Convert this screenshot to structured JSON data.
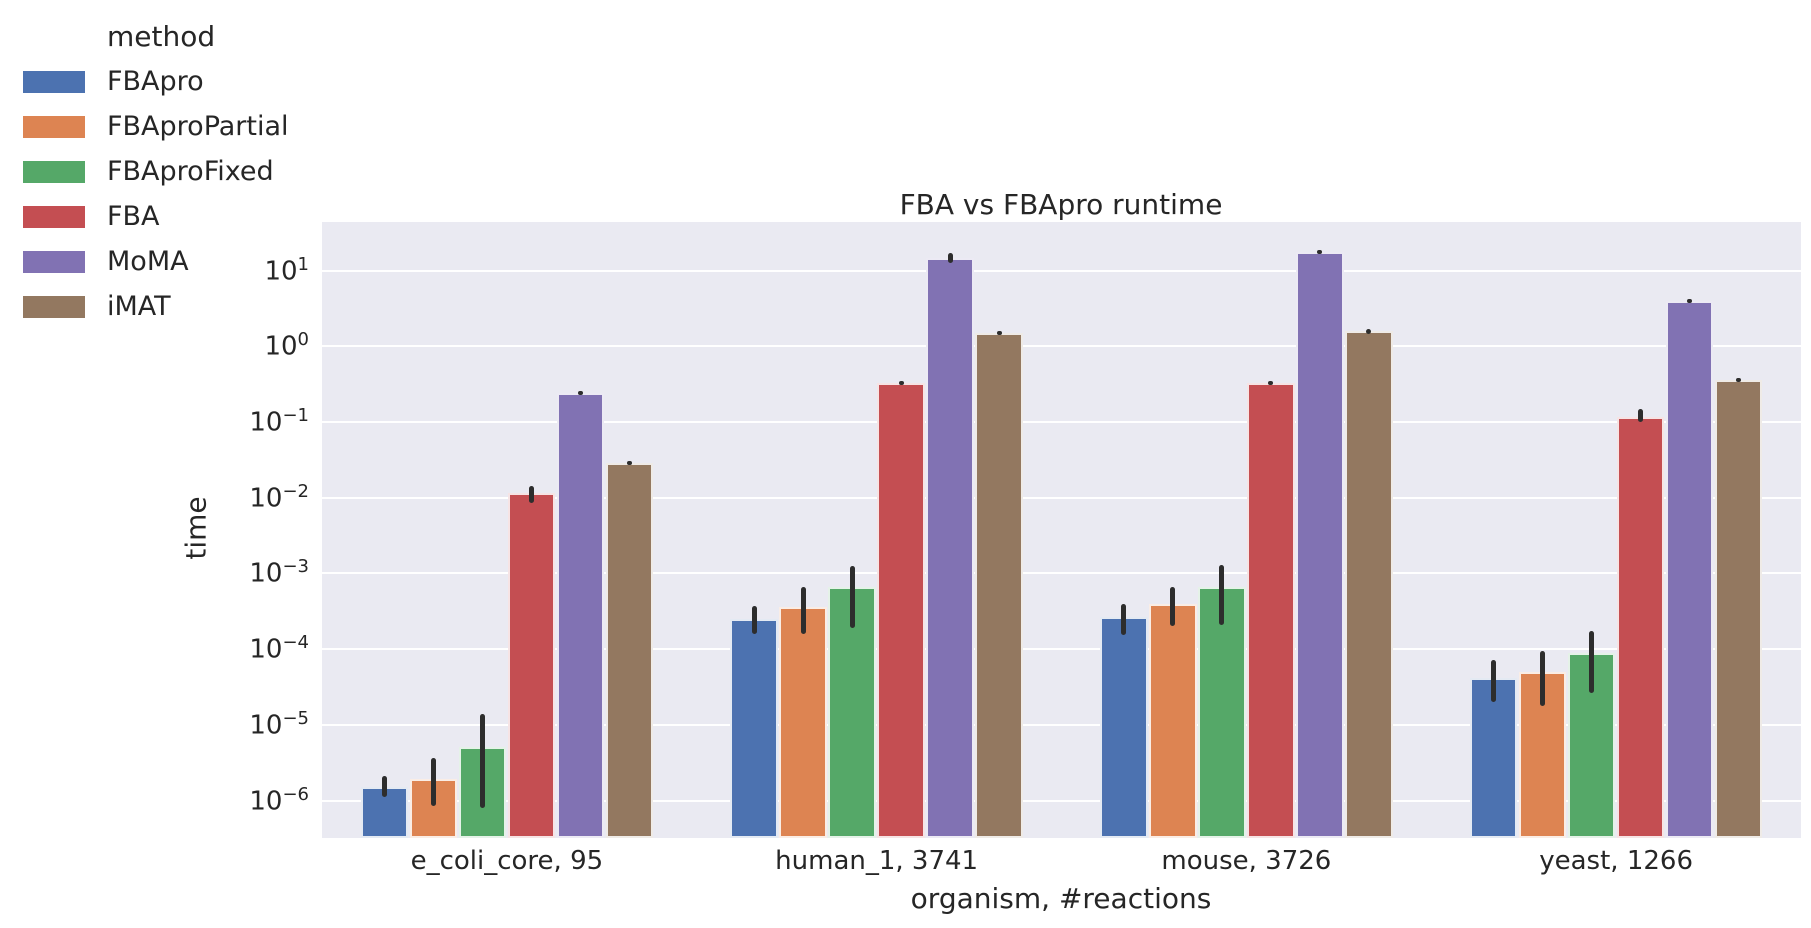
{
  "figure": {
    "background_color": "#ffffff",
    "plot_background_color": "#eaeaf2",
    "gridline_color": "#ffffff",
    "text_color": "#262626",
    "errorbar_color": "#2d2d2d"
  },
  "legend": {
    "title": "method"
  },
  "chart_data": {
    "type": "bar",
    "title": "FBA vs FBApro runtime",
    "xlabel": "organism, #reactions",
    "ylabel": "time",
    "yscale": "log",
    "ylim": [
      3.2e-07,
      44
    ],
    "y_ticks_exponents": [
      1,
      0,
      -1,
      -2,
      -3,
      -4,
      -5,
      -6
    ],
    "grid": true,
    "legend_position": "upper-left-outside",
    "categories": [
      "e_coli_core, 95",
      "human_1, 3741",
      "mouse, 3726",
      "yeast, 1266"
    ],
    "series": [
      {
        "name": "FBApro",
        "color": "#4C72B0",
        "values": [
          1.5e-06,
          0.00025,
          0.00027,
          4.2e-05
        ],
        "err_lo": [
          1.1e-06,
          0.00016,
          0.000155,
          2e-05
        ],
        "err_hi": [
          2.1e-06,
          0.00037,
          0.0004,
          7.2e-05
        ]
      },
      {
        "name": "FBAproPartial",
        "color": "#DD8452",
        "values": [
          1.9e-06,
          0.00036,
          0.00039,
          5e-05
        ],
        "err_lo": [
          8.5e-07,
          0.00016,
          0.0002,
          1.8e-05
        ],
        "err_hi": [
          3.7e-06,
          0.00066,
          0.00066,
          9.5e-05
        ]
      },
      {
        "name": "FBAproFixed",
        "color": "#55A868",
        "values": [
          5.1e-06,
          0.00066,
          0.00066,
          8.9e-05
        ],
        "err_lo": [
          8e-07,
          0.00019,
          0.00021,
          2.6e-05
        ],
        "err_hi": [
          1.4e-05,
          0.00125,
          0.0013,
          0.000174
        ]
      },
      {
        "name": "FBA",
        "color": "#C44E52",
        "values": [
          0.0115,
          0.33,
          0.33,
          0.118
        ],
        "err_lo": [
          0.0086,
          0.31,
          0.315,
          0.1
        ],
        "err_hi": [
          0.0145,
          0.35,
          0.345,
          0.15
        ]
      },
      {
        "name": "MoMA",
        "color": "#8172B3",
        "values": [
          0.245,
          14.5,
          17.5,
          4.0
        ],
        "err_lo": [
          0.23,
          12.8,
          16.6,
          3.85
        ],
        "err_hi": [
          0.26,
          17.3,
          18.5,
          4.2
        ]
      },
      {
        "name": "iMAT",
        "color": "#937860",
        "values": [
          0.029,
          1.5,
          1.58,
          0.365
        ],
        "err_lo": [
          0.027,
          1.45,
          1.47,
          0.35
        ],
        "err_hi": [
          0.031,
          1.6,
          1.7,
          0.38
        ]
      }
    ]
  }
}
